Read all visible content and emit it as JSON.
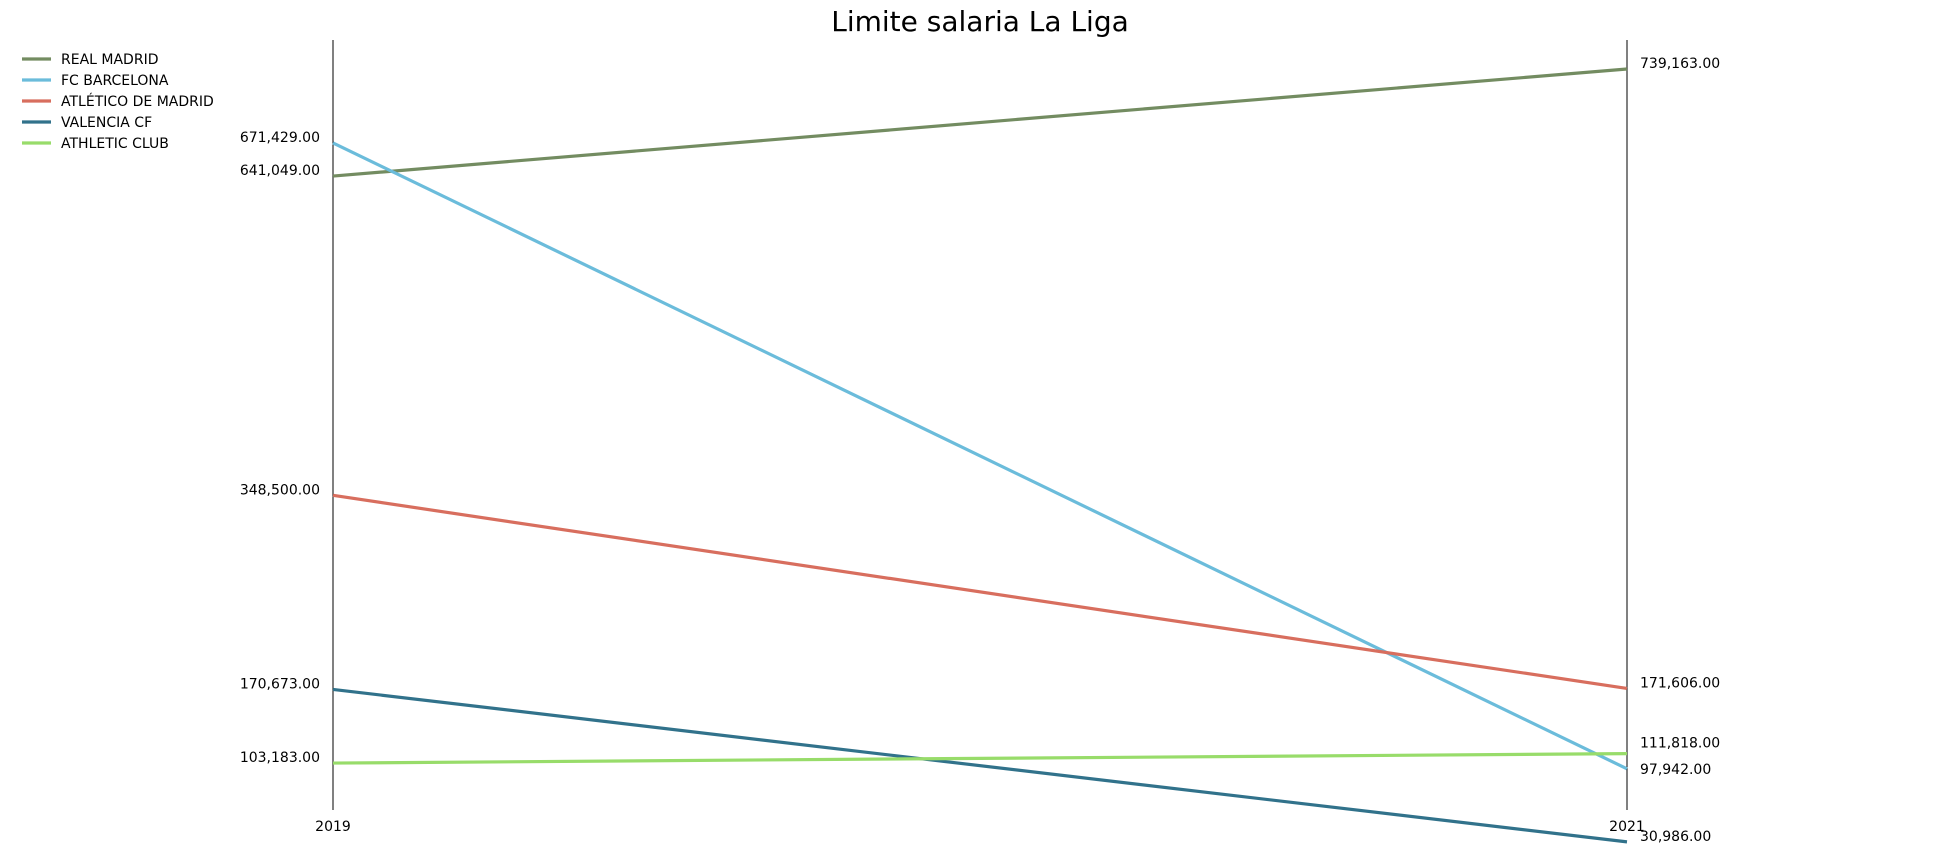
{
  "chart_data": {
    "type": "line",
    "title": "Limite salaria La Liga",
    "xlabel": "",
    "ylabel": "",
    "categories": [
      "2019",
      "2021"
    ],
    "ylim": [
      0,
      780000
    ],
    "grid": false,
    "legend_position": "top-left",
    "series": [
      {
        "name": "REAL MADRID",
        "color": "#738c61",
        "values": [
          641049,
          739163
        ],
        "labels": [
          "641,049.00",
          "739,163.00"
        ]
      },
      {
        "name": "FC BARCELONA",
        "color": "#6bbcdb",
        "values": [
          671429,
          97942
        ],
        "labels": [
          "671,429.00",
          "97,942.00"
        ]
      },
      {
        "name": "ATLÉTICO DE MADRID",
        "color": "#d86e5e",
        "values": [
          348500,
          171606
        ],
        "labels": [
          "348,500.00",
          "171,606.00"
        ]
      },
      {
        "name": "VALENCIA CF",
        "color": "#31728b",
        "values": [
          170673,
          30986
        ],
        "labels": [
          "170,673.00",
          "30,986.00"
        ]
      },
      {
        "name": "ATHLETIC CLUB",
        "color": "#98dc6a",
        "values": [
          103183,
          111818
        ],
        "labels": [
          "103,183.00",
          "111,818.00"
        ]
      }
    ]
  }
}
